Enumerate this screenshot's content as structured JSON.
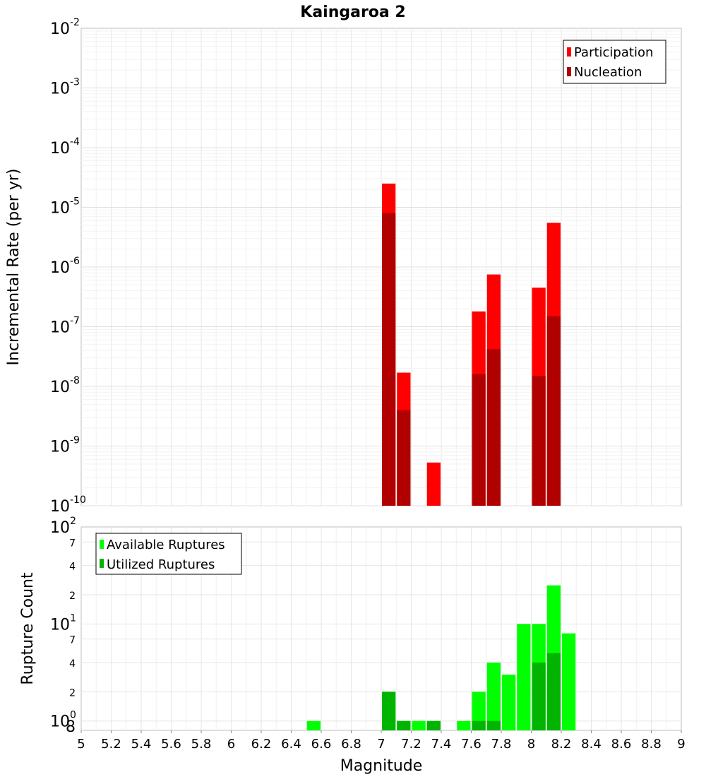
{
  "chart_data": [
    {
      "type": "bar",
      "title": "Kaingaroa 2",
      "ylabel": "Incremental Rate (per yr)",
      "xlim": [
        5,
        9
      ],
      "ylim": [
        1e-10,
        0.01
      ],
      "yscale": "log",
      "grid": true,
      "legend_position": "top-right",
      "y_tick_labels": [
        {
          "base": "10",
          "exp": "-2"
        },
        {
          "base": "10",
          "exp": "-3"
        },
        {
          "base": "10",
          "exp": "-4"
        },
        {
          "base": "10",
          "exp": "-5"
        },
        {
          "base": "10",
          "exp": "-6"
        },
        {
          "base": "10",
          "exp": "-7"
        },
        {
          "base": "10",
          "exp": "-8"
        },
        {
          "base": "10",
          "exp": "-9"
        },
        {
          "base": "10",
          "exp": "-10"
        }
      ],
      "series": [
        {
          "name": "Participation",
          "color": "#ff0000",
          "x": [
            7.05,
            7.15,
            7.35,
            7.65,
            7.75,
            8.05,
            8.15
          ],
          "values": [
            2.5e-05,
            1.7e-08,
            5.3e-10,
            1.8e-07,
            7.5e-07,
            4.5e-07,
            5.5e-06
          ]
        },
        {
          "name": "Nucleation",
          "color": "#b00000",
          "x": [
            7.05,
            7.15,
            7.65,
            7.75,
            8.05,
            8.15
          ],
          "values": [
            8e-06,
            4e-09,
            1.6e-08,
            4.2e-08,
            1.5e-08,
            1.5e-07
          ]
        }
      ]
    },
    {
      "type": "bar",
      "xlabel": "Magnitude",
      "ylabel": "Rupture Count",
      "xlim": [
        5,
        9
      ],
      "ylim": [
        0.8,
        100
      ],
      "yscale": "log",
      "grid": true,
      "legend_position": "top-left",
      "x_tick_labels": [
        "5",
        "5.2",
        "5.4",
        "5.6",
        "5.8",
        "6",
        "6.2",
        "6.4",
        "6.6",
        "6.8",
        "7",
        "7.2",
        "7.4",
        "7.6",
        "7.8",
        "8",
        "8.2",
        "8.4",
        "8.6",
        "8.8",
        "9"
      ],
      "y_tick_labels": [
        {
          "base": "10",
          "exp": "2"
        },
        {
          "base": "10",
          "exp": "1"
        },
        {
          "base": "10",
          "exp": "0"
        }
      ],
      "y_minor_labels": [
        "7",
        "4",
        "2",
        "7",
        "4",
        "2",
        "8"
      ],
      "series": [
        {
          "name": "Available Ruptures",
          "color": "#00ff00",
          "x": [
            6.55,
            7.05,
            7.15,
            7.25,
            7.35,
            7.55,
            7.65,
            7.75,
            7.85,
            7.95,
            8.05,
            8.15,
            8.25
          ],
          "values": [
            1,
            2,
            1,
            1,
            1,
            1,
            2,
            4,
            3,
            10,
            10,
            25,
            8
          ]
        },
        {
          "name": "Utilized Ruptures",
          "color": "#00b400",
          "x": [
            7.05,
            7.15,
            7.35,
            7.65,
            7.75,
            8.05,
            8.15
          ],
          "values": [
            2,
            1,
            1,
            1,
            1,
            4,
            5
          ]
        }
      ]
    }
  ]
}
